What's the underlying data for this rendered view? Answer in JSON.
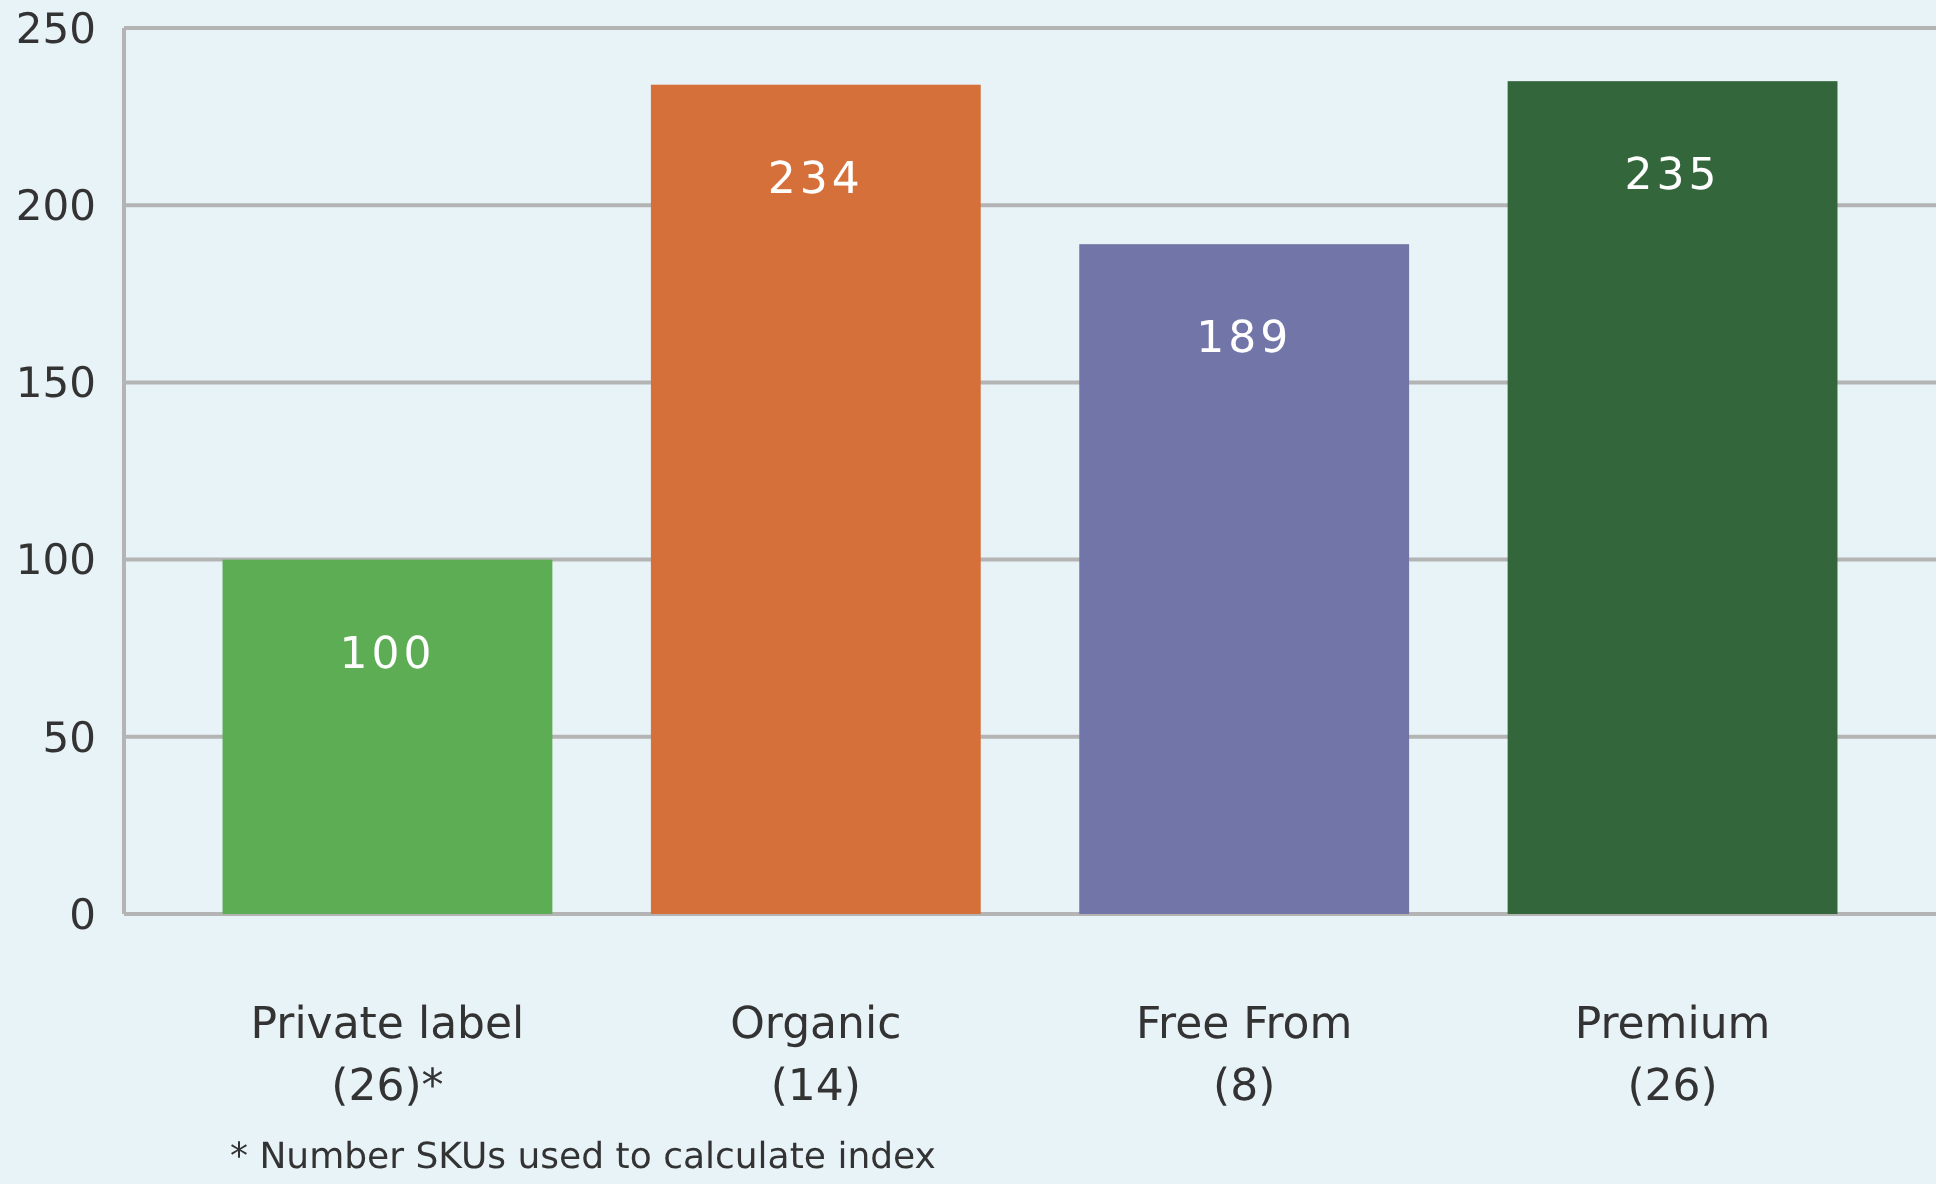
{
  "chart_data": {
    "type": "bar",
    "categories": [
      "Private label\n(26)*",
      "Organic\n(14)",
      "Free From\n(8)",
      "Premium\n(26)"
    ],
    "values": [
      100,
      234,
      189,
      235
    ],
    "colors": [
      "#5dad55",
      "#d6703a",
      "#7275a8",
      "#33673b"
    ],
    "ylim": [
      0,
      250
    ],
    "yticks": [
      0,
      50,
      100,
      150,
      200,
      250
    ],
    "grid": "y",
    "data_labels": true,
    "annotations": [
      "* Number SKUs used to calculate index"
    ]
  }
}
